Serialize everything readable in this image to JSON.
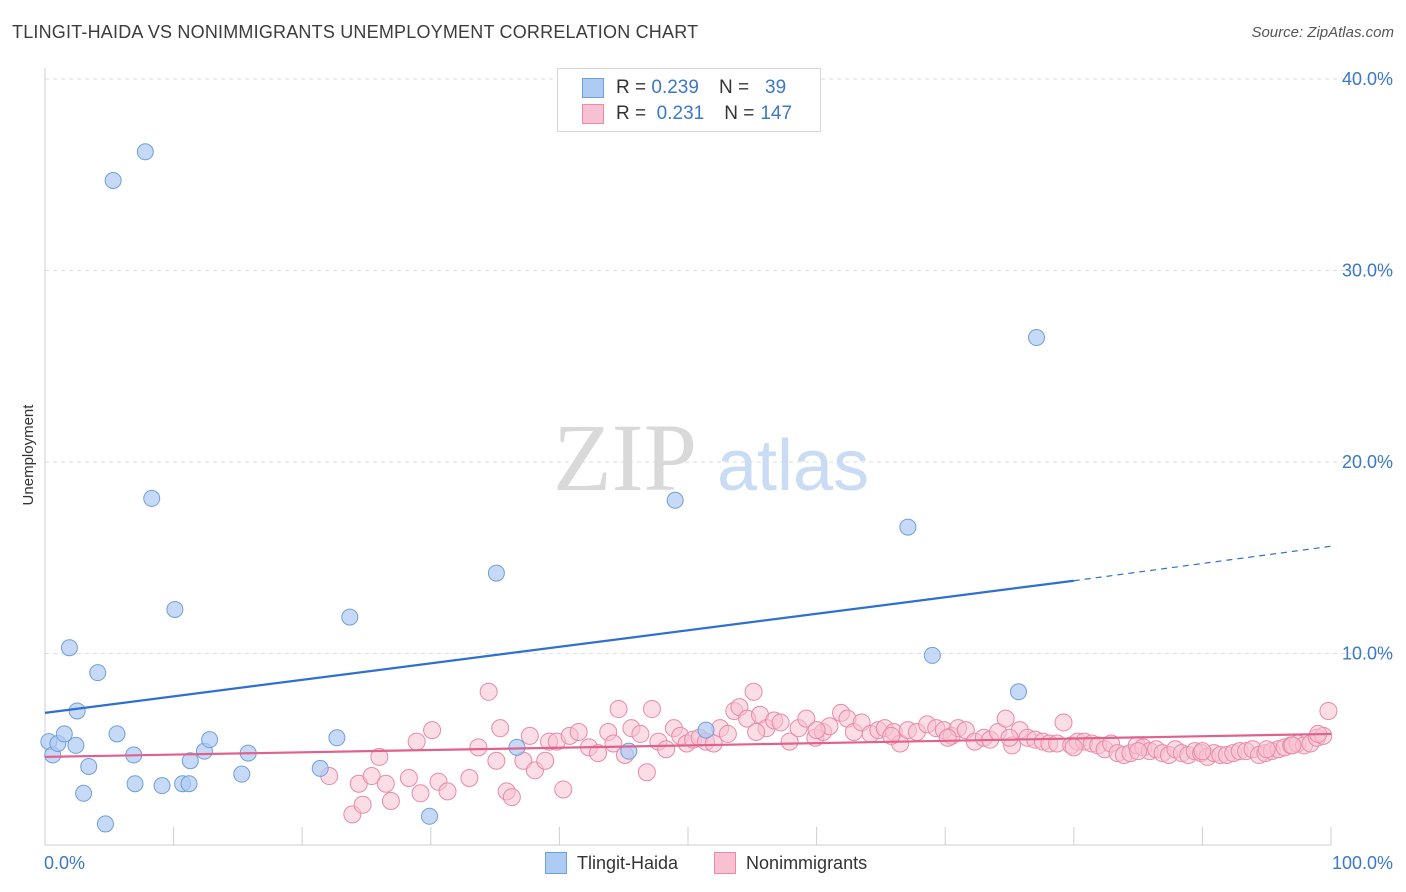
{
  "title": "TLINGIT-HAIDA VS NONIMMIGRANTS UNEMPLOYMENT CORRELATION CHART",
  "source": "Source: ZipAtlas.com",
  "watermark": {
    "zip": "ZIP",
    "atlas": "atlas"
  },
  "legend": {
    "r_label": "R =",
    "n_label": "N =",
    "series1": {
      "r": "0.239",
      "n": "39"
    },
    "series2": {
      "r": "0.231",
      "n": "147"
    }
  },
  "colors": {
    "series1_fill": "#aecbf3",
    "series1_stroke": "#6f9fd8",
    "series1_line": "#2f6fd0",
    "series2_fill": "#f8c1d2",
    "series2_stroke": "#ea89a8",
    "series2_line": "#e0628c",
    "tick": "#3a78c8"
  },
  "chart_data": {
    "type": "scatter",
    "title": "TLINGIT-HAIDA VS NONIMMIGRANTS UNEMPLOYMENT CORRELATION CHART",
    "xlabel": "",
    "ylabel": "Unemployment",
    "xlim": [
      0,
      100
    ],
    "ylim": [
      0,
      40
    ],
    "x_tick_labels": [
      "0.0%",
      "100.0%"
    ],
    "y_ticks": [
      10,
      20,
      30,
      40
    ],
    "y_tick_labels": [
      "10.0%",
      "20.0%",
      "30.0%",
      "40.0%"
    ],
    "legend": [
      "Tlingit-Haida",
      "Nonimmigrants"
    ],
    "series": [
      {
        "name": "Tlingit-Haida",
        "trend": {
          "x0": 0,
          "y0": 6.9,
          "x1": 80,
          "y1": 13.8,
          "dash_to_x": 100,
          "dash_to_y": 15.6
        },
        "points": [
          [
            0.3,
            5.4
          ],
          [
            0.6,
            4.7
          ],
          [
            1.0,
            5.3
          ],
          [
            1.5,
            5.8
          ],
          [
            1.9,
            10.3
          ],
          [
            2.4,
            5.2
          ],
          [
            2.5,
            7.0
          ],
          [
            3.0,
            2.7
          ],
          [
            3.4,
            4.1
          ],
          [
            4.1,
            9.0
          ],
          [
            4.7,
            1.1
          ],
          [
            5.3,
            34.7
          ],
          [
            5.6,
            5.8
          ],
          [
            6.9,
            4.7
          ],
          [
            7.0,
            3.2
          ],
          [
            7.8,
            36.2
          ],
          [
            8.3,
            18.1
          ],
          [
            9.1,
            3.1
          ],
          [
            10.1,
            12.3
          ],
          [
            10.7,
            3.2
          ],
          [
            11.2,
            3.2
          ],
          [
            11.3,
            4.4
          ],
          [
            12.4,
            4.9
          ],
          [
            12.8,
            5.5
          ],
          [
            15.3,
            3.7
          ],
          [
            15.8,
            4.8
          ],
          [
            21.4,
            4.0
          ],
          [
            22.7,
            5.6
          ],
          [
            23.7,
            11.9
          ],
          [
            29.9,
            1.5
          ],
          [
            35.1,
            14.2
          ],
          [
            36.7,
            5.1
          ],
          [
            45.4,
            4.9
          ],
          [
            49.0,
            18.0
          ],
          [
            51.4,
            6.0
          ],
          [
            67.1,
            16.6
          ],
          [
            69.0,
            9.9
          ],
          [
            75.7,
            8.0
          ],
          [
            77.1,
            26.5
          ]
        ]
      },
      {
        "name": "Nonimmigrants",
        "trend": {
          "x0": 0,
          "y0": 4.6,
          "x1": 100,
          "y1": 5.8
        },
        "points": [
          [
            22.1,
            3.6
          ],
          [
            23.9,
            1.6
          ],
          [
            24.4,
            3.2
          ],
          [
            24.7,
            2.1
          ],
          [
            25.4,
            3.6
          ],
          [
            26.0,
            4.6
          ],
          [
            26.5,
            3.2
          ],
          [
            26.9,
            2.3
          ],
          [
            28.3,
            3.5
          ],
          [
            28.9,
            5.4
          ],
          [
            29.2,
            2.7
          ],
          [
            30.1,
            6.0
          ],
          [
            30.6,
            3.3
          ],
          [
            31.3,
            2.8
          ],
          [
            33.0,
            3.5
          ],
          [
            33.7,
            5.1
          ],
          [
            34.5,
            8.0
          ],
          [
            35.1,
            4.4
          ],
          [
            35.4,
            6.1
          ],
          [
            35.9,
            2.8
          ],
          [
            36.3,
            2.5
          ],
          [
            37.2,
            4.4
          ],
          [
            37.7,
            5.7
          ],
          [
            38.1,
            3.9
          ],
          [
            38.9,
            4.4
          ],
          [
            39.2,
            5.4
          ],
          [
            39.8,
            5.4
          ],
          [
            40.3,
            2.9
          ],
          [
            40.8,
            5.7
          ],
          [
            41.5,
            5.9
          ],
          [
            42.3,
            5.1
          ],
          [
            43.0,
            4.8
          ],
          [
            43.8,
            5.9
          ],
          [
            44.2,
            5.3
          ],
          [
            44.6,
            7.1
          ],
          [
            45.1,
            4.7
          ],
          [
            45.6,
            6.1
          ],
          [
            46.3,
            5.8
          ],
          [
            46.8,
            3.8
          ],
          [
            47.2,
            7.1
          ],
          [
            47.7,
            5.4
          ],
          [
            48.3,
            5.0
          ],
          [
            48.9,
            6.1
          ],
          [
            49.4,
            5.7
          ],
          [
            49.9,
            5.3
          ],
          [
            50.4,
            5.5
          ],
          [
            50.9,
            5.6
          ],
          [
            51.4,
            5.4
          ],
          [
            52.0,
            5.3
          ],
          [
            52.5,
            6.1
          ],
          [
            53.1,
            5.8
          ],
          [
            53.6,
            7.0
          ],
          [
            54.0,
            7.2
          ],
          [
            54.6,
            6.6
          ],
          [
            55.1,
            8.0
          ],
          [
            55.6,
            6.8
          ],
          [
            56.1,
            6.1
          ],
          [
            56.7,
            6.5
          ],
          [
            57.2,
            6.4
          ],
          [
            57.9,
            5.4
          ],
          [
            58.6,
            6.1
          ],
          [
            59.2,
            6.6
          ],
          [
            59.9,
            5.6
          ],
          [
            60.5,
            5.9
          ],
          [
            61.0,
            6.2
          ],
          [
            61.9,
            6.9
          ],
          [
            62.4,
            6.6
          ],
          [
            62.9,
            5.9
          ],
          [
            63.5,
            6.4
          ],
          [
            64.2,
            5.8
          ],
          [
            64.8,
            6.0
          ],
          [
            65.3,
            6.1
          ],
          [
            66.0,
            5.9
          ],
          [
            66.5,
            5.3
          ],
          [
            67.1,
            6.0
          ],
          [
            67.8,
            5.9
          ],
          [
            68.6,
            6.3
          ],
          [
            69.3,
            6.1
          ],
          [
            69.9,
            6.0
          ],
          [
            70.5,
            5.7
          ],
          [
            71.0,
            6.1
          ],
          [
            71.6,
            6.0
          ],
          [
            72.3,
            5.4
          ],
          [
            73.0,
            5.6
          ],
          [
            73.5,
            5.5
          ],
          [
            74.1,
            5.9
          ],
          [
            74.7,
            6.6
          ],
          [
            75.2,
            5.2
          ],
          [
            75.8,
            6.0
          ],
          [
            76.4,
            5.6
          ],
          [
            77.0,
            5.5
          ],
          [
            77.6,
            5.4
          ],
          [
            78.1,
            5.3
          ],
          [
            78.7,
            5.3
          ],
          [
            79.2,
            6.4
          ],
          [
            79.8,
            5.2
          ],
          [
            80.3,
            5.4
          ],
          [
            80.8,
            5.4
          ],
          [
            81.4,
            5.3
          ],
          [
            81.9,
            5.2
          ],
          [
            82.4,
            5.0
          ],
          [
            82.9,
            5.3
          ],
          [
            83.4,
            4.8
          ],
          [
            83.9,
            4.7
          ],
          [
            84.4,
            4.8
          ],
          [
            84.9,
            5.2
          ],
          [
            85.4,
            5.1
          ],
          [
            85.9,
            4.9
          ],
          [
            86.4,
            5.0
          ],
          [
            86.9,
            4.8
          ],
          [
            87.4,
            4.7
          ],
          [
            87.9,
            5.0
          ],
          [
            88.4,
            4.8
          ],
          [
            88.9,
            4.7
          ],
          [
            89.4,
            4.9
          ],
          [
            89.9,
            4.8
          ],
          [
            90.4,
            4.6
          ],
          [
            90.9,
            4.8
          ],
          [
            91.4,
            4.7
          ],
          [
            91.9,
            4.7
          ],
          [
            92.4,
            4.8
          ],
          [
            92.9,
            4.9
          ],
          [
            93.4,
            4.9
          ],
          [
            93.9,
            5.0
          ],
          [
            94.4,
            4.7
          ],
          [
            94.9,
            4.8
          ],
          [
            95.4,
            4.9
          ],
          [
            95.9,
            5.0
          ],
          [
            96.4,
            5.1
          ],
          [
            96.9,
            5.2
          ],
          [
            97.4,
            5.3
          ],
          [
            97.9,
            5.2
          ],
          [
            98.4,
            5.3
          ],
          [
            98.9,
            5.6
          ],
          [
            99.4,
            5.7
          ],
          [
            99.8,
            7.0
          ],
          [
            65.8,
            5.7
          ],
          [
            60.0,
            6.0
          ],
          [
            55.3,
            5.9
          ],
          [
            70.2,
            5.6
          ],
          [
            75.0,
            5.6
          ],
          [
            80.0,
            5.1
          ],
          [
            85.0,
            4.9
          ],
          [
            90.0,
            4.9
          ],
          [
            95.0,
            5.0
          ],
          [
            99.0,
            5.8
          ],
          [
            97.0,
            5.2
          ]
        ]
      }
    ]
  },
  "bottom_legend": {
    "series1": "Tlingit-Haida",
    "series2": "Nonimmigrants"
  }
}
